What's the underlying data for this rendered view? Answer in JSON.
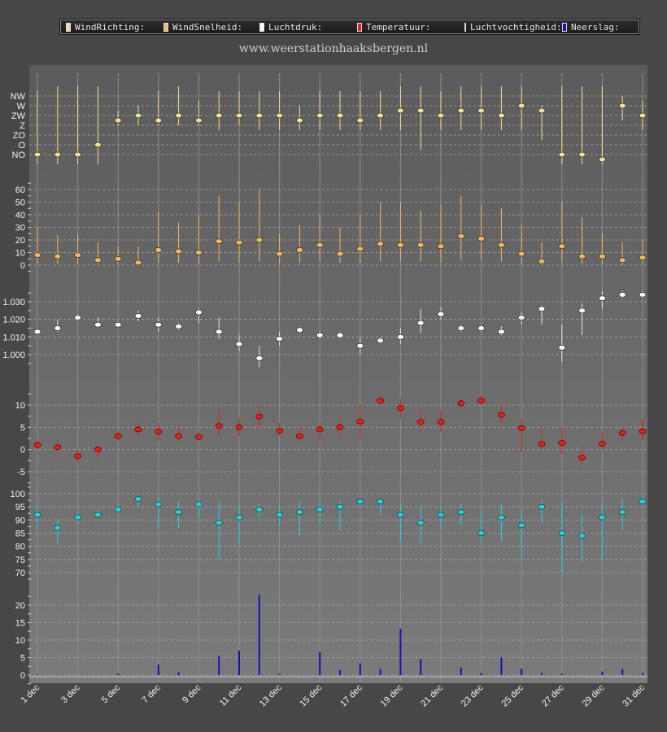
{
  "header": {
    "website": "www.weerstationhaaksbergen.nl"
  },
  "legend": [
    {
      "label": "WindRichting:",
      "color": "#f3de96"
    },
    {
      "label": "WindSnelheid:",
      "color": "#f3b760"
    },
    {
      "label": "Luchtdruk:",
      "color": "#ffffff"
    },
    {
      "label": "Temperatuur:",
      "color": "#e0241b"
    },
    {
      "label": "Luchtvochtigheid:",
      "color": "#1ed6e0"
    },
    {
      "label": "Neerslag:",
      "color": "#1313b8"
    }
  ],
  "chart_data": [
    {
      "type": "scatter",
      "panel": "wind-direction",
      "series_label": "WindRichting:",
      "color": "#f3de96",
      "y_categories": [
        "NO",
        "O",
        "ZO",
        "Z",
        "ZW",
        "W",
        "NW"
      ],
      "x": [
        "1 dec",
        "2 dec",
        "3 dec",
        "4 dec",
        "5 dec",
        "6 dec",
        "7 dec",
        "8 dec",
        "9 dec",
        "10 dec",
        "11 dec",
        "12 dec",
        "13 dec",
        "14 dec",
        "15 dec",
        "16 dec",
        "17 dec",
        "18 dec",
        "19 dec",
        "20 dec",
        "21 dec",
        "22 dec",
        "23 dec",
        "24 dec",
        "25 dec",
        "26 dec",
        "27 dec",
        "28 dec",
        "29 dec",
        "30 dec",
        "31 dec"
      ],
      "values": [
        0,
        0,
        0,
        1,
        3.5,
        4,
        3.5,
        4,
        3.5,
        4,
        4,
        4,
        4,
        3.5,
        4,
        4,
        3.5,
        4,
        4.5,
        4.5,
        4,
        4.5,
        4.5,
        4,
        5,
        4.5,
        0,
        0,
        -0.5,
        5,
        4
      ],
      "range_low": [
        -1,
        -1,
        -1,
        -1,
        3,
        3,
        3,
        3,
        3,
        2.5,
        3,
        2.5,
        2.5,
        2.5,
        2.5,
        2.5,
        2.5,
        2.5,
        2.5,
        0.5,
        2.5,
        2.5,
        2.5,
        2.5,
        2.5,
        1.5,
        -1,
        -1,
        -1,
        3.5,
        2.5
      ],
      "range_high": [
        6.5,
        7,
        7,
        7,
        4.5,
        5,
        6.5,
        7,
        5.5,
        6.5,
        6.5,
        6.5,
        6.5,
        5,
        6.5,
        6.5,
        6.5,
        6.5,
        7,
        7,
        6.5,
        7,
        7,
        7,
        7,
        5,
        7,
        7,
        7,
        6,
        5.5
      ]
    },
    {
      "type": "scatter",
      "panel": "wind-speed",
      "series_label": "WindSnelheid:",
      "color": "#f3b760",
      "y_ticks": [
        0,
        10,
        20,
        30,
        40,
        50,
        60
      ],
      "ylim": [
        0,
        65
      ],
      "values": [
        8,
        7,
        8,
        4,
        5,
        2,
        12,
        11,
        10,
        19,
        18,
        20,
        9,
        12,
        16,
        9,
        13,
        17,
        16,
        16,
        15,
        23,
        21,
        16,
        9,
        3,
        15,
        7,
        7,
        4,
        6
      ],
      "range_low": [
        1,
        1,
        1,
        1,
        1,
        0,
        2,
        2,
        1,
        3,
        2,
        3,
        1,
        2,
        3,
        2,
        2,
        3,
        3,
        3,
        2,
        4,
        4,
        3,
        1,
        0,
        2,
        1,
        1,
        0,
        1
      ],
      "range_high": [
        30,
        24,
        24,
        18,
        15,
        15,
        42,
        34,
        40,
        55,
        50,
        60,
        25,
        32,
        40,
        30,
        40,
        50,
        50,
        43,
        48,
        55,
        48,
        45,
        32,
        18,
        50,
        38,
        25,
        18,
        20
      ]
    },
    {
      "type": "scatter",
      "panel": "air-pressure",
      "series_label": "Luchtdruk:",
      "color": "#ffffff",
      "y_ticks": [
        "1.000",
        "1.010",
        "1.020",
        "1.030"
      ],
      "ylim": [
        990,
        1040
      ],
      "values": [
        1013,
        1015,
        1021,
        1017,
        1017,
        1022,
        1017,
        1016,
        1024,
        1013,
        1006,
        998,
        1009,
        1014,
        1011,
        1011,
        1005,
        1008,
        1010,
        1018,
        1023,
        1015,
        1015,
        1013,
        1021,
        1026,
        1004,
        1025,
        1032,
        1034,
        1034
      ],
      "range_low": [
        1012,
        1013,
        1019,
        1016,
        1016,
        1019,
        1013,
        1014,
        1018,
        1009,
        1002,
        993,
        1005,
        1012,
        1009,
        1009,
        1000,
        1007,
        1006,
        1012,
        1020,
        1013,
        1013,
        1011,
        1017,
        1017,
        996,
        1011,
        1026,
        1032,
        1032
      ],
      "range_high": [
        1014,
        1020,
        1023,
        1021,
        1019,
        1025,
        1021,
        1018,
        1026,
        1021,
        1011,
        1005,
        1013,
        1016,
        1013,
        1013,
        1010,
        1010,
        1015,
        1026,
        1027,
        1017,
        1017,
        1016,
        1024,
        1028,
        1017,
        1029,
        1036,
        1036,
        1036
      ]
    },
    {
      "type": "scatter",
      "panel": "temperature",
      "series_label": "Temperatuur:",
      "color": "#e0241b",
      "y_ticks": [
        -5,
        0,
        5,
        10
      ],
      "ylim": [
        -7,
        14
      ],
      "values": [
        1,
        0.5,
        -1.5,
        0,
        3,
        4.5,
        4,
        3,
        2.8,
        5.3,
        5,
        7.4,
        4.2,
        3,
        4.5,
        5,
        6.3,
        11,
        9.3,
        6.2,
        6.2,
        10.4,
        11,
        7.8,
        4.8,
        1.2,
        1.5,
        -1.8,
        1.3,
        3.7,
        4.1
      ],
      "range_low": [
        0,
        -0.5,
        -3,
        -2,
        2,
        3,
        2,
        2,
        2,
        3,
        3,
        5,
        3,
        2,
        2,
        3,
        2,
        10,
        7,
        4,
        4,
        9,
        10,
        6,
        -0.5,
        0,
        -1,
        -3,
        0,
        2,
        2
      ],
      "range_high": [
        2,
        2,
        0,
        1,
        4,
        6,
        6,
        5,
        4,
        9.5,
        7,
        10,
        6,
        5,
        6,
        7,
        10,
        12,
        11.5,
        9,
        9,
        11.5,
        12,
        10,
        7,
        5,
        5,
        1,
        4,
        5,
        7
      ]
    },
    {
      "type": "scatter",
      "panel": "humidity",
      "series_label": "Luchtvochtigheid:",
      "color": "#1ed6e0",
      "y_ticks": [
        70,
        75,
        80,
        85,
        90,
        95,
        100
      ],
      "ylim": [
        68,
        102
      ],
      "values": [
        92,
        87,
        91,
        92,
        94,
        98,
        96,
        93,
        96,
        89,
        91,
        94,
        92,
        93,
        94,
        95,
        97,
        97,
        92,
        89,
        92,
        93,
        85,
        91,
        88,
        95,
        85,
        84,
        91,
        93,
        97
      ],
      "range_low": [
        87,
        81,
        89,
        91,
        92,
        95,
        87,
        87,
        91,
        75,
        81,
        91,
        88,
        84,
        89,
        86,
        95,
        92,
        82,
        81,
        86,
        88,
        82,
        82,
        75,
        89,
        70,
        74,
        75,
        86,
        95
      ],
      "range_high": [
        96,
        90,
        93,
        94,
        96,
        99,
        99,
        97,
        98,
        97,
        96,
        96,
        95,
        97,
        97,
        97,
        98,
        98,
        96,
        95,
        95,
        96,
        94,
        96,
        94,
        98,
        97,
        92,
        96,
        98,
        99
      ]
    },
    {
      "type": "bar",
      "panel": "precipitation",
      "series_label": "Neerslag:",
      "color": "#1313b8",
      "y_ticks": [
        0,
        5,
        10,
        15,
        20
      ],
      "ylim": [
        0,
        24
      ],
      "values": [
        0.2,
        0,
        0,
        0,
        0.4,
        0,
        3,
        0.8,
        0,
        5.5,
        7,
        23,
        0.4,
        0,
        6.6,
        1.4,
        3.4,
        1.8,
        13.2,
        4.6,
        0,
        2.2,
        0.6,
        5,
        1.8,
        0.6,
        0.4,
        0,
        1,
        1.8,
        0.6
      ]
    }
  ],
  "x_axis": {
    "tick_labels": [
      "1 dec",
      "3 dec",
      "5 dec",
      "7 dec",
      "9 dec",
      "11 dec",
      "13 dec",
      "15 dec",
      "17 dec",
      "19 dec",
      "21 dec",
      "23 dec",
      "25 dec",
      "27 dec",
      "29 dec",
      "31 dec"
    ]
  }
}
